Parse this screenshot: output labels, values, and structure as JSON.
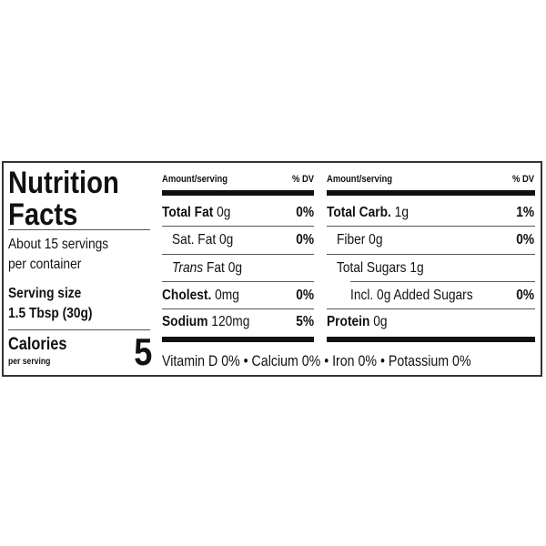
{
  "title_line1": "Nutrition",
  "title_line2": "Facts",
  "servings_line1": "About 15 servings",
  "servings_line2": "per container",
  "serving_size_label": "Serving size",
  "serving_size_value": "1.5 Tbsp (30g)",
  "calories_label": "Calories",
  "calories_sub": "per serving",
  "calories_value": "5",
  "col_header_amount": "Amount/serving",
  "col_header_dv": "% DV",
  "left_rows": [
    {
      "label": "Total Fat",
      "amount": "0g",
      "dv": "0%"
    },
    {
      "label": "Sat. Fat",
      "amount": "0g",
      "dv": "0%"
    },
    {
      "label": "Trans",
      "amount": "Fat 0g",
      "dv": ""
    },
    {
      "label": "Cholest.",
      "amount": "0mg",
      "dv": "0%"
    },
    {
      "label": "Sodium",
      "amount": "120mg",
      "dv": "5%"
    }
  ],
  "right_rows": [
    {
      "label": "Total Carb.",
      "amount": "1g",
      "dv": "1%"
    },
    {
      "label": "Fiber",
      "amount": "0g",
      "dv": "0%"
    },
    {
      "label": "Total Sugars",
      "amount": "1g",
      "dv": ""
    },
    {
      "label": "Incl. 0g Added Sugars",
      "amount": "",
      "dv": "0%"
    },
    {
      "label": "Protein",
      "amount": "0g",
      "dv": ""
    }
  ],
  "vitamins": "Vitamin D 0% • Calcium 0% • Iron 0% • Potassium 0%"
}
